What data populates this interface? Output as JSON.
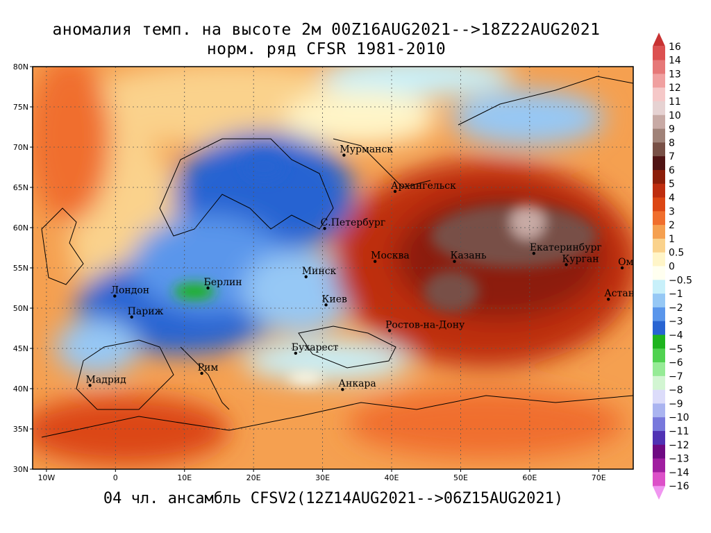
{
  "title_line1": "аномалия темп. на высоте 2м 00Z16AUG2021-->18Z22AUG2021",
  "title_line2": "норм. ряд CFSR 1981-2010",
  "footer": "04 чл. ансамбль CFSV2(12Z14AUG2021-->06Z15AUG2021)",
  "lat_labels": [
    "80N",
    "75N",
    "70N",
    "65N",
    "60N",
    "55N",
    "50N",
    "45N",
    "40N",
    "35N",
    "30N"
  ],
  "lon_labels": [
    "10W",
    "0",
    "10E",
    "20E",
    "30E",
    "40E",
    "50E",
    "60E",
    "70E"
  ],
  "cities": [
    {
      "name": "Мурманск",
      "lon": 33.1,
      "lat": 69.0
    },
    {
      "name": "Архангельск",
      "lon": 40.5,
      "lat": 64.5
    },
    {
      "name": "С.Петербург",
      "lon": 30.3,
      "lat": 59.9
    },
    {
      "name": "Москва",
      "lon": 37.6,
      "lat": 55.8
    },
    {
      "name": "Казань",
      "lon": 49.1,
      "lat": 55.8
    },
    {
      "name": "Екатеринбург",
      "lon": 60.6,
      "lat": 56.8
    },
    {
      "name": "Курган",
      "lon": 65.3,
      "lat": 55.4
    },
    {
      "name": "Омск",
      "lon": 73.4,
      "lat": 55.0
    },
    {
      "name": "Астана",
      "lon": 71.4,
      "lat": 51.1
    },
    {
      "name": "Минск",
      "lon": 27.6,
      "lat": 53.9
    },
    {
      "name": "Киев",
      "lon": 30.5,
      "lat": 50.4
    },
    {
      "name": "Берлин",
      "lon": 13.4,
      "lat": 52.5
    },
    {
      "name": "Лондон",
      "lon": -0.1,
      "lat": 51.5
    },
    {
      "name": "Париж",
      "lon": 2.35,
      "lat": 48.9
    },
    {
      "name": "Ростов-на-Дону",
      "lon": 39.7,
      "lat": 47.2
    },
    {
      "name": "Бухарест",
      "lon": 26.1,
      "lat": 44.4
    },
    {
      "name": "Рим",
      "lon": 12.5,
      "lat": 41.9
    },
    {
      "name": "Мадрид",
      "lon": -3.7,
      "lat": 40.4
    },
    {
      "name": "Анкара",
      "lon": 32.9,
      "lat": 39.9
    }
  ],
  "colorbar": {
    "labels": [
      "16",
      "14",
      "13",
      "12",
      "11",
      "10",
      "9",
      "8",
      "7",
      "6",
      "5",
      "4",
      "3",
      "2",
      "1",
      "0.5",
      "0",
      "−0.5",
      "−1",
      "−2",
      "−3",
      "−4",
      "−5",
      "−6",
      "−7",
      "−8",
      "−9",
      "−10",
      "−11",
      "−12",
      "−13",
      "−14",
      "−16"
    ],
    "colors": [
      "#c83232",
      "#dc5050",
      "#e67878",
      "#f0a0a0",
      "#f5c8c8",
      "#e6d2d2",
      "#c8aaa5",
      "#a08278",
      "#785046",
      "#501414",
      "#8c1e0a",
      "#be2d0f",
      "#dc4614",
      "#f06e2d",
      "#f5a050",
      "#fad28c",
      "#fff5c8",
      "#fffff0",
      "#c8f0fa",
      "#96c8f5",
      "#5a96eb",
      "#2864d2",
      "#1eb41e",
      "#50d250",
      "#96eb96",
      "#d2f5d2",
      "#dcdcfa",
      "#aab4f0",
      "#7878dc",
      "#5032b4",
      "#6e0a82",
      "#a01ea0",
      "#dc50c8",
      "#f096f0"
    ]
  }
}
